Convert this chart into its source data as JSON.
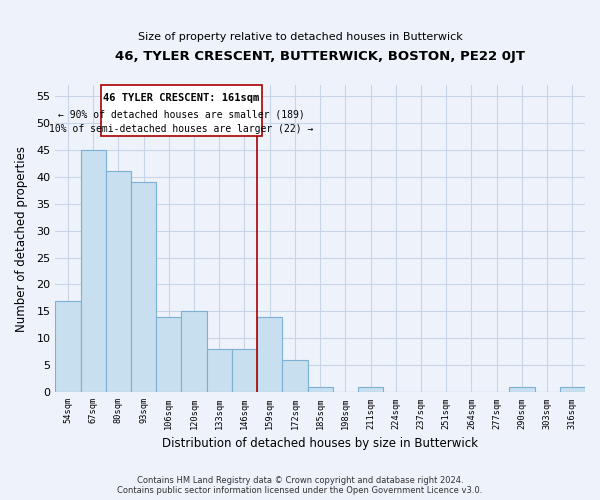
{
  "title": "46, TYLER CRESCENT, BUTTERWICK, BOSTON, PE22 0JT",
  "subtitle": "Size of property relative to detached houses in Butterwick",
  "xlabel": "Distribution of detached houses by size in Butterwick",
  "ylabel": "Number of detached properties",
  "bin_labels": [
    "54sqm",
    "67sqm",
    "80sqm",
    "93sqm",
    "106sqm",
    "120sqm",
    "133sqm",
    "146sqm",
    "159sqm",
    "172sqm",
    "185sqm",
    "198sqm",
    "211sqm",
    "224sqm",
    "237sqm",
    "251sqm",
    "264sqm",
    "277sqm",
    "290sqm",
    "303sqm",
    "316sqm"
  ],
  "bar_heights": [
    17,
    45,
    41,
    39,
    14,
    15,
    8,
    8,
    14,
    6,
    1,
    0,
    1,
    0,
    0,
    0,
    0,
    0,
    1,
    0,
    1
  ],
  "bar_color": "#c8dff0",
  "bar_edge_color": "#7bafd4",
  "marker_line_color": "#aa0000",
  "annotation_line1": "46 TYLER CRESCENT: 161sqm",
  "annotation_line2": "← 90% of detached houses are smaller (189)",
  "annotation_line3": "10% of semi-detached houses are larger (22) →",
  "ylim": [
    0,
    57
  ],
  "yticks": [
    0,
    5,
    10,
    15,
    20,
    25,
    30,
    35,
    40,
    45,
    50,
    55
  ],
  "footer_line1": "Contains HM Land Registry data © Crown copyright and database right 2024.",
  "footer_line2": "Contains public sector information licensed under the Open Government Licence v3.0.",
  "bg_color": "#eef2fb",
  "grid_color": "#c8d4e8"
}
